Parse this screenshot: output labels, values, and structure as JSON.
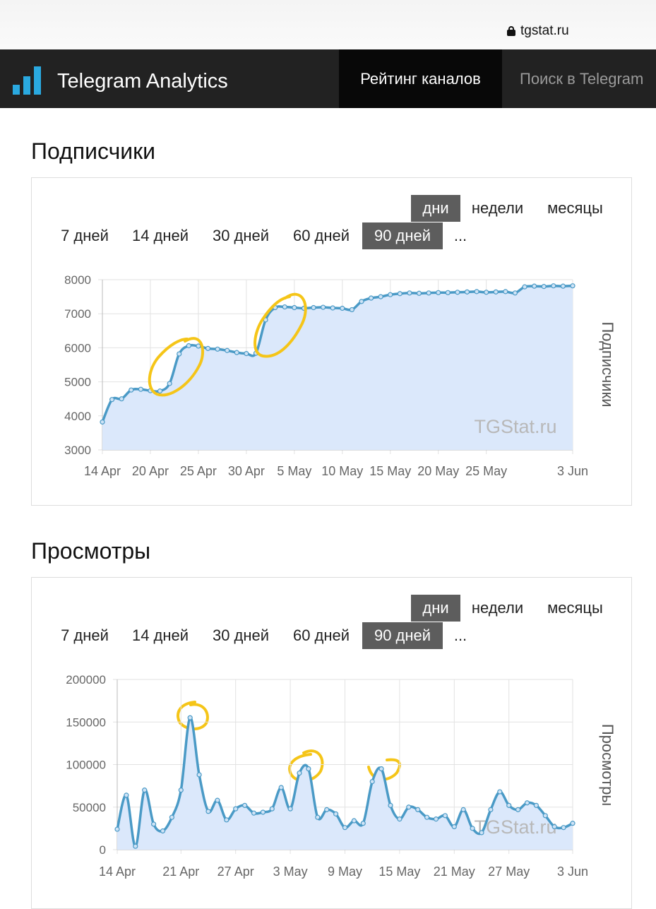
{
  "browser": {
    "url": "tgstat.ru"
  },
  "navbar": {
    "brand": "Telegram Analytics",
    "items": [
      {
        "label": "Рейтинг каналов",
        "active": true
      },
      {
        "label": "Поиск в Telegram",
        "active": false
      }
    ]
  },
  "sections": [
    {
      "title": "Подписчики",
      "group_buttons": [
        "дни",
        "недели",
        "месяцы"
      ],
      "group_active": "дни",
      "range_buttons": [
        "7 дней",
        "14 дней",
        "30 дней",
        "60 дней",
        "90 дней",
        "..."
      ],
      "range_active": "90 дней",
      "watermark": "TGStat.ru"
    },
    {
      "title": "Просмотры",
      "group_buttons": [
        "дни",
        "недели",
        "месяцы"
      ],
      "group_active": "дни",
      "range_buttons": [
        "7 дней",
        "14 дней",
        "30 дней",
        "60 дней",
        "90 дней",
        "..."
      ],
      "range_active": "90 дней",
      "watermark": "TGStat.ru"
    }
  ],
  "colors": {
    "line": "#4a9ac6",
    "fill": "#dbe8fb",
    "grid": "#e2e2e2",
    "active_button": "#5d5d5d",
    "navbar": "#222222",
    "logo": "#2aa9e0"
  },
  "chart_data": [
    {
      "type": "area",
      "title": "",
      "ylabel": "Подписчики",
      "ylim": [
        3000,
        8000
      ],
      "yticks": [
        3000,
        4000,
        5000,
        6000,
        7000,
        8000
      ],
      "x_tick_labels": [
        "14 Apr",
        "20 Apr",
        "25 Apr",
        "30 Apr",
        "5 May",
        "10 May",
        "15 May",
        "20 May",
        "25 May",
        "3 Jun"
      ],
      "x_tick_days": [
        0,
        5,
        10,
        15,
        20,
        25,
        30,
        35,
        40,
        49
      ],
      "grid": true,
      "x": [
        0,
        1,
        2,
        3,
        4,
        5,
        6,
        7,
        8,
        9,
        10,
        11,
        12,
        13,
        14,
        15,
        16,
        17,
        18,
        19,
        20,
        21,
        22,
        23,
        24,
        25,
        26,
        27,
        28,
        29,
        30,
        31,
        32,
        33,
        34,
        35,
        36,
        37,
        38,
        39,
        40,
        41,
        42,
        43,
        44,
        45,
        46,
        47,
        48,
        49
      ],
      "values": [
        3820,
        4480,
        4500,
        4760,
        4780,
        4740,
        4730,
        4950,
        5820,
        6060,
        6050,
        5980,
        5960,
        5920,
        5860,
        5830,
        5840,
        6820,
        7180,
        7200,
        7180,
        7160,
        7180,
        7190,
        7170,
        7160,
        7120,
        7360,
        7460,
        7500,
        7560,
        7590,
        7610,
        7600,
        7610,
        7620,
        7620,
        7630,
        7640,
        7650,
        7630,
        7640,
        7650,
        7610,
        7790,
        7810,
        7800,
        7820,
        7810,
        7820
      ]
    },
    {
      "type": "area",
      "title": "",
      "ylabel": "Просмотры",
      "ylim": [
        0,
        200000
      ],
      "yticks": [
        0,
        50000,
        100000,
        150000,
        200000
      ],
      "x_tick_labels": [
        "14 Apr",
        "21 Apr",
        "27 Apr",
        "3 May",
        "9 May",
        "15 May",
        "21 May",
        "27 May",
        "3 Jun"
      ],
      "x_tick_days": [
        0,
        7,
        13,
        19,
        25,
        31,
        37,
        43,
        50
      ],
      "grid": true,
      "x": [
        0,
        1,
        2,
        3,
        4,
        5,
        6,
        7,
        8,
        9,
        10,
        11,
        12,
        13,
        14,
        15,
        16,
        17,
        18,
        19,
        20,
        21,
        22,
        23,
        24,
        25,
        26,
        27,
        28,
        29,
        30,
        31,
        32,
        33,
        34,
        35,
        36,
        37,
        38,
        39,
        40,
        41,
        42,
        43,
        44,
        45,
        46,
        47,
        48,
        49,
        50
      ],
      "values": [
        24000,
        64000,
        4000,
        70000,
        30000,
        22000,
        38000,
        70000,
        155000,
        88000,
        45000,
        58000,
        35000,
        48000,
        52000,
        43000,
        44000,
        48000,
        73000,
        48000,
        90000,
        95000,
        38000,
        47000,
        42000,
        26000,
        34000,
        31000,
        80000,
        95000,
        52000,
        36000,
        50000,
        47000,
        38000,
        36000,
        40000,
        27000,
        47000,
        25000,
        20000,
        47000,
        68000,
        52000,
        47000,
        55000,
        52000,
        40000,
        27000,
        26000,
        31000
      ]
    }
  ]
}
